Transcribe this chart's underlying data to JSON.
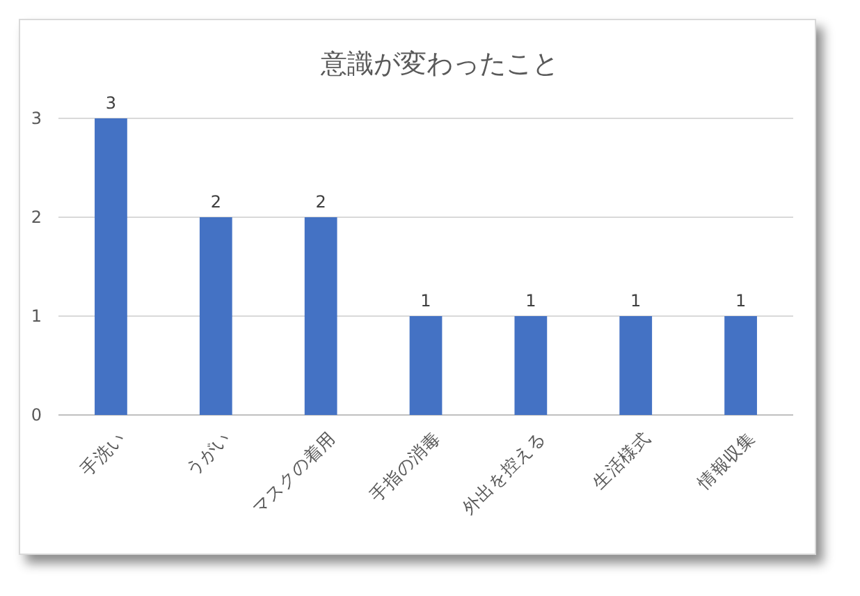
{
  "chart_data": {
    "type": "bar",
    "title": "意識が変わったこと",
    "categories": [
      "手洗い",
      "うがい",
      "マスクの着用",
      "手指の消毒",
      "外出を控える",
      "生活様式",
      "情報収集"
    ],
    "values": [
      3,
      2,
      2,
      1,
      1,
      1,
      1
    ],
    "color": "#4472c4",
    "ylim": [
      0,
      3
    ],
    "yticks": [
      0,
      1,
      2,
      3
    ],
    "grid": "y",
    "data_labels": true
  }
}
